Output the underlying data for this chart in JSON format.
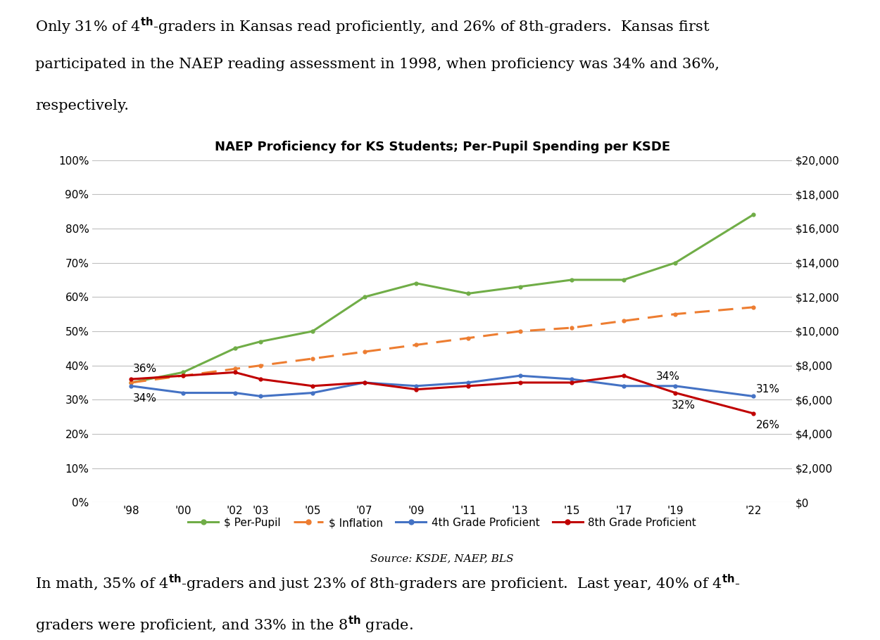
{
  "title": "NAEP Proficiency for KS Students; Per-Pupil Spending per KSDE",
  "source_text": "Source: KSDE, NAEP, BLS",
  "x_labels": [
    "'98",
    "'00",
    "'02",
    "'03",
    "'05",
    "'07",
    "'09",
    "'11",
    "'13",
    "'15",
    "'17",
    "'19",
    "'22"
  ],
  "x_values": [
    1998,
    2000,
    2002,
    2003,
    2005,
    2007,
    2009,
    2011,
    2013,
    2015,
    2017,
    2019,
    2022
  ],
  "per_pupil": [
    0.35,
    0.38,
    0.45,
    0.47,
    0.5,
    0.6,
    0.64,
    0.61,
    0.63,
    0.65,
    0.65,
    0.7,
    0.84
  ],
  "inflation": [
    0.35,
    0.37,
    0.39,
    0.4,
    0.42,
    0.44,
    0.46,
    0.48,
    0.5,
    0.51,
    0.53,
    0.55,
    0.57
  ],
  "grade4": [
    0.34,
    0.32,
    0.32,
    0.31,
    0.32,
    0.35,
    0.34,
    0.35,
    0.37,
    0.36,
    0.34,
    0.34,
    0.31
  ],
  "grade8": [
    0.36,
    0.37,
    0.38,
    0.36,
    0.34,
    0.35,
    0.33,
    0.34,
    0.35,
    0.35,
    0.37,
    0.32,
    0.26
  ],
  "per_pupil_color": "#70AD47",
  "inflation_color": "#ED7D31",
  "grade4_color": "#4472C4",
  "grade8_color": "#C00000",
  "background_color": "#ffffff",
  "grid_color": "#BFBFBF"
}
